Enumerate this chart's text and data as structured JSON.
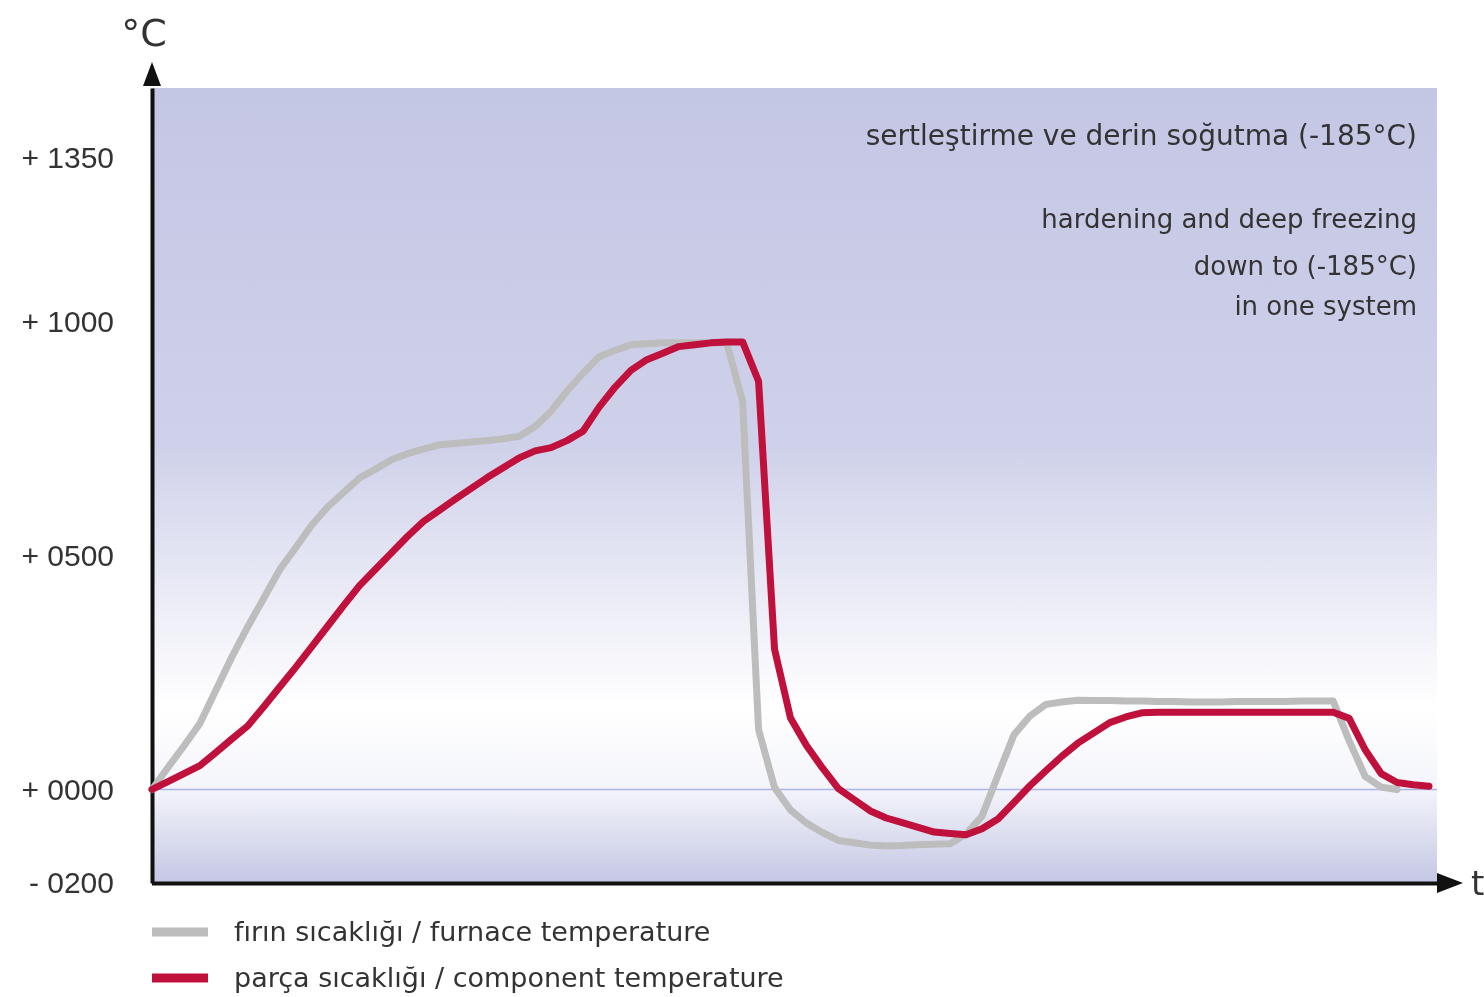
{
  "chart_data": {
    "type": "line",
    "xlabel": "t",
    "ylabel": "°C",
    "categories": [
      null,
      null,
      null,
      null,
      null,
      null,
      null,
      null,
      null,
      null,
      null,
      null,
      null,
      null,
      null,
      null,
      null,
      null,
      null,
      null,
      null,
      null,
      null,
      null,
      null,
      null,
      null,
      null,
      null,
      null,
      null,
      null,
      null,
      null,
      null,
      null,
      null,
      null,
      null,
      null,
      null,
      null,
      null,
      null,
      null,
      null,
      null,
      null,
      null,
      null,
      null,
      null,
      null,
      null,
      null,
      null,
      null,
      null,
      null,
      null,
      null,
      null,
      null,
      null,
      null,
      null,
      null,
      null,
      null,
      null,
      null,
      null,
      null,
      null,
      null,
      null,
      null,
      null,
      null,
      null,
      null
    ],
    "ylim": [
      -200,
      1500
    ],
    "yticks": [
      {
        "value": -200,
        "label": "- 0200"
      },
      {
        "value": 0,
        "label": "+ 0000"
      },
      {
        "value": 500,
        "label": "+ 0500"
      },
      {
        "value": 1000,
        "label": "+ 1000"
      },
      {
        "value": 1350,
        "label": "+ 1350"
      }
    ],
    "legend": "bottom",
    "ref_lines": [
      {
        "axis": "y",
        "value": 0,
        "label": null,
        "color": "#aab4e6"
      }
    ],
    "annotations": [
      "sertleştirme ve derin soğutma (-185°C)",
      "hardening and deep freezing",
      "down to (-185°C)",
      "in one system"
    ],
    "series": [
      {
        "name": "fırın sıcaklığı  /  furnace temperature",
        "color": "#bdbdbd",
        "values": [
          0,
          47,
          93,
          141,
          212,
          283,
          348,
          409,
          470,
          517,
          565,
          604,
          635,
          666,
          685,
          705,
          718,
          728,
          737,
          740,
          743,
          746,
          750,
          755,
          776,
          809,
          852,
          890,
          925,
          939,
          951,
          953,
          955,
          955,
          955,
          955,
          955,
          830,
          128,
          4,
          -44,
          -72,
          -92,
          -109,
          -114,
          -119,
          -121,
          -120,
          -118,
          -117,
          -116,
          -95,
          -57,
          31,
          117,
          157,
          182,
          187,
          191,
          190,
          190,
          189,
          189,
          188,
          188,
          187,
          187,
          187,
          188,
          188,
          188,
          188,
          189,
          189,
          189,
          104,
          28,
          5,
          0,
          null,
          null
        ]
      },
      {
        "name": "parça sıcaklığı  /  component temperature",
        "color": "#c0103c",
        "values": [
          0,
          17,
          34,
          51,
          79,
          108,
          136,
          177,
          219,
          261,
          305,
          349,
          393,
          436,
          471,
          506,
          541,
          573,
          597,
          621,
          644,
          667,
          688,
          709,
          724,
          731,
          746,
          766,
          817,
          860,
          896,
          919,
          933,
          947,
          951,
          955,
          957,
          957,
          873,
          300,
          153,
          94,
          46,
          2,
          -22,
          -46,
          -61,
          -71,
          -81,
          -91,
          -94,
          -97,
          -84,
          -63,
          -28,
          8,
          40,
          71,
          99,
          121,
          143,
          155,
          164,
          165,
          165,
          165,
          165,
          165,
          165,
          165,
          165,
          165,
          165,
          165,
          165,
          152,
          85,
          34,
          15,
          10,
          7
        ]
      }
    ]
  }
}
